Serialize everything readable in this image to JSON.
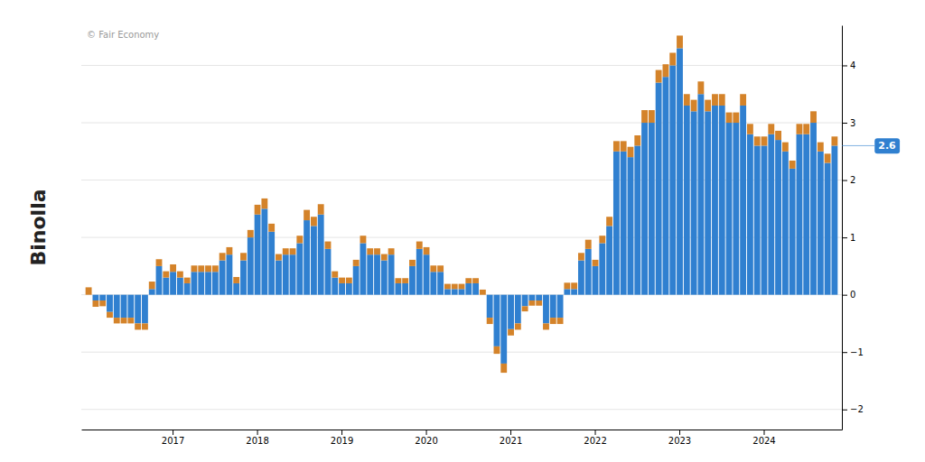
{
  "chart_data": {
    "type": "bar",
    "stacked": true,
    "grid": true,
    "categories": [
      null,
      null,
      null,
      null,
      null,
      null,
      null,
      null,
      null,
      null,
      null,
      null,
      "2017",
      null,
      null,
      null,
      null,
      null,
      null,
      null,
      null,
      null,
      null,
      null,
      "2018",
      null,
      null,
      null,
      null,
      null,
      null,
      null,
      null,
      null,
      null,
      null,
      "2019",
      null,
      null,
      null,
      null,
      null,
      null,
      null,
      null,
      null,
      null,
      null,
      "2020",
      null,
      null,
      null,
      null,
      null,
      null,
      null,
      null,
      null,
      null,
      null,
      "2021",
      null,
      null,
      null,
      null,
      null,
      null,
      null,
      null,
      null,
      null,
      null,
      "2022",
      null,
      null,
      null,
      null,
      null,
      null,
      null,
      null,
      null,
      null,
      null,
      "2023",
      null,
      null,
      null,
      null,
      null,
      null,
      null,
      null,
      null,
      null,
      null,
      "2024",
      null,
      null,
      null,
      null,
      null,
      null,
      null,
      null,
      null,
      null
    ],
    "series": [
      {
        "color": "#3080d0",
        "values": [
          0.0,
          -0.1,
          -0.1,
          -0.3,
          -0.4,
          -0.4,
          -0.4,
          -0.5,
          -0.5,
          0.1,
          0.5,
          0.3,
          0.4,
          0.3,
          0.2,
          0.4,
          0.4,
          0.4,
          0.4,
          0.6,
          0.7,
          0.2,
          0.6,
          1.0,
          1.4,
          1.5,
          1.1,
          0.6,
          0.7,
          0.7,
          0.9,
          1.3,
          1.2,
          1.4,
          0.8,
          0.3,
          0.2,
          0.2,
          0.5,
          0.9,
          0.7,
          0.7,
          0.6,
          0.7,
          0.2,
          0.2,
          0.5,
          0.8,
          0.7,
          0.4,
          0.4,
          0.1,
          0.1,
          0.1,
          0.2,
          0.2,
          0.0,
          -0.4,
          -0.9,
          -1.2,
          -0.6,
          -0.5,
          -0.2,
          -0.1,
          -0.1,
          -0.5,
          -0.4,
          -0.4,
          0.1,
          0.1,
          0.6,
          0.8,
          0.5,
          0.9,
          1.2,
          2.5,
          2.5,
          2.4,
          2.6,
          3.0,
          3.0,
          3.7,
          3.8,
          4.0,
          4.3,
          3.3,
          3.2,
          3.5,
          3.2,
          3.3,
          3.3,
          3.0,
          3.0,
          3.3,
          2.8,
          2.6,
          2.6,
          2.8,
          2.7,
          2.5,
          2.2,
          2.8,
          2.8,
          3.0,
          2.5,
          2.3,
          2.6
        ]
      },
      {
        "color": "#d4832a",
        "values": [
          0.13,
          0.11,
          0.1,
          0.1,
          0.1,
          0.1,
          0.1,
          0.11,
          0.11,
          0.13,
          0.12,
          0.11,
          0.13,
          0.11,
          0.1,
          0.11,
          0.11,
          0.11,
          0.11,
          0.13,
          0.13,
          0.11,
          0.13,
          0.13,
          0.17,
          0.18,
          0.14,
          0.11,
          0.11,
          0.11,
          0.13,
          0.18,
          0.16,
          0.18,
          0.13,
          0.11,
          0.1,
          0.1,
          0.11,
          0.13,
          0.11,
          0.11,
          0.11,
          0.11,
          0.09,
          0.09,
          0.11,
          0.13,
          0.13,
          0.11,
          0.11,
          0.09,
          0.09,
          0.09,
          0.09,
          0.09,
          0.09,
          0.11,
          0.13,
          0.16,
          0.11,
          0.11,
          0.09,
          0.09,
          0.09,
          0.11,
          0.11,
          0.11,
          0.11,
          0.11,
          0.13,
          0.16,
          0.11,
          0.13,
          0.16,
          0.18,
          0.18,
          0.18,
          0.18,
          0.22,
          0.22,
          0.22,
          0.22,
          0.22,
          0.22,
          0.2,
          0.2,
          0.22,
          0.2,
          0.2,
          0.2,
          0.18,
          0.18,
          0.2,
          0.18,
          0.16,
          0.16,
          0.18,
          0.16,
          0.16,
          0.14,
          0.18,
          0.18,
          0.2,
          0.16,
          0.16,
          0.16
        ]
      }
    ],
    "ylim": [
      -2.35,
      4.7
    ],
    "yticks": [
      -2.0,
      -1.0,
      0.0,
      1.0,
      2.0,
      3.0,
      4.0
    ],
    "annotations": [
      {
        "text": "© Fair Economy"
      },
      {
        "text": "Binolla"
      },
      {
        "text": "2.6",
        "y": 2.6,
        "color": "#3080d0"
      }
    ]
  }
}
